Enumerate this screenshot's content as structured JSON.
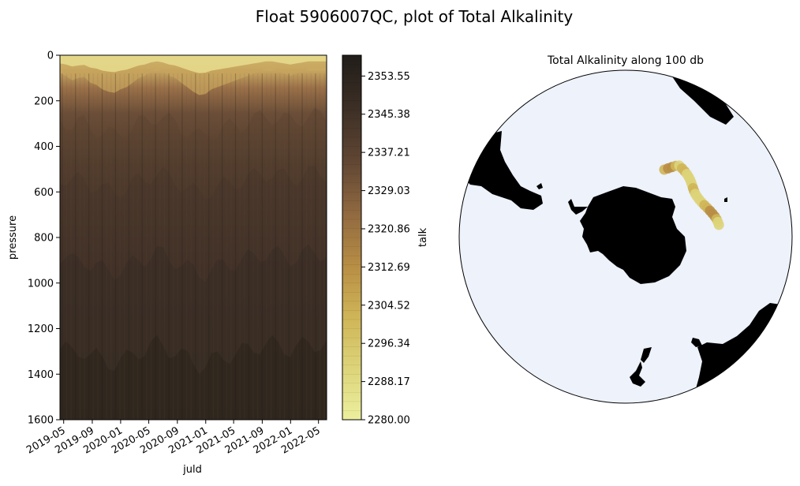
{
  "figure": {
    "suptitle": "Float 5906007QC, plot of Total Alkalinity"
  },
  "chart_data": [
    {
      "type": "heatmap",
      "title": "",
      "xlabel": "juld",
      "ylabel": "pressure",
      "x_tick_labels": [
        "2019-05",
        "2019-09",
        "2020-01",
        "2020-05",
        "2020-09",
        "2021-01",
        "2021-05",
        "2021-09",
        "2022-01",
        "2022-05"
      ],
      "xlim": [
        "2019-04-15",
        "2022-06-05"
      ],
      "y_ticks": [
        0,
        200,
        400,
        600,
        800,
        1000,
        1200,
        1400,
        1600
      ],
      "ylim": [
        1600,
        0
      ],
      "y_inverted": true,
      "colorbar": {
        "label": "talk",
        "range": [
          2280.0,
          2358.0
        ],
        "ticks": [
          "2280.00",
          "2288.17",
          "2296.34",
          "2304.52",
          "2312.69",
          "2320.86",
          "2329.03",
          "2337.21",
          "2345.38",
          "2353.55"
        ],
        "colors": [
          "#ecef9e",
          "#ddd47a",
          "#cfb558",
          "#b88e45",
          "#8f6840",
          "#604633",
          "#3b2e25",
          "#211d19"
        ]
      },
      "surface_layer_depth_db": [
        80,
        90,
        110,
        100,
        95,
        120,
        130,
        150,
        160,
        165,
        150,
        140,
        120,
        100,
        90,
        70,
        60,
        70,
        90,
        100,
        120,
        140,
        160,
        175,
        170,
        150,
        140,
        130,
        120,
        110,
        100,
        90,
        80,
        70,
        60,
        60,
        70,
        80,
        90,
        80,
        70,
        60,
        60,
        60,
        60
      ]
    },
    {
      "type": "map",
      "title": "Total Alkalinity along 100 db",
      "projection": "south-polar-stereographic",
      "ocean_color": "#edf2fb",
      "land_color": "#000000",
      "track_values": [
        2305,
        2312,
        2318,
        2300,
        2296,
        2298,
        2302,
        2296,
        2294,
        2292,
        2290,
        2295,
        2299,
        2302,
        2296,
        2292,
        2290,
        2294,
        2300,
        2306,
        2310,
        2315,
        2308,
        2298,
        2290,
        2288
      ]
    }
  ]
}
